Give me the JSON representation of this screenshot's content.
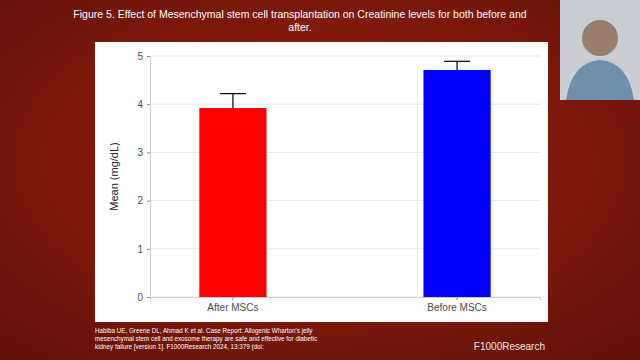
{
  "chart_data": {
    "type": "bar",
    "title": "Figure 5. Effect of Mesenchymal stem cell transplantation on Creatinine levels for both before and after.",
    "y_label": "Mean (mg/dL)",
    "categories": [
      "After MSCs",
      "Before MSCs"
    ],
    "values": [
      3.92,
      4.71
    ],
    "errors": [
      0.3,
      0.18
    ],
    "colors": [
      "#ff0000",
      "#0000ff"
    ],
    "ylim": [
      0,
      5
    ],
    "yticks": [
      0,
      1,
      2,
      3,
      4,
      5
    ],
    "grid": true,
    "annotations": [
      "Habiba UE, Greene DL, Ahmad K et al. Case Report: Allogenic Wharton's jelly mesenchymal stem cell and exosome therapy are safe and effective for diabetic kidney failure [version 1]. F1000Research 2024, 13:379 (doi:",
      "F1000Research"
    ]
  }
}
